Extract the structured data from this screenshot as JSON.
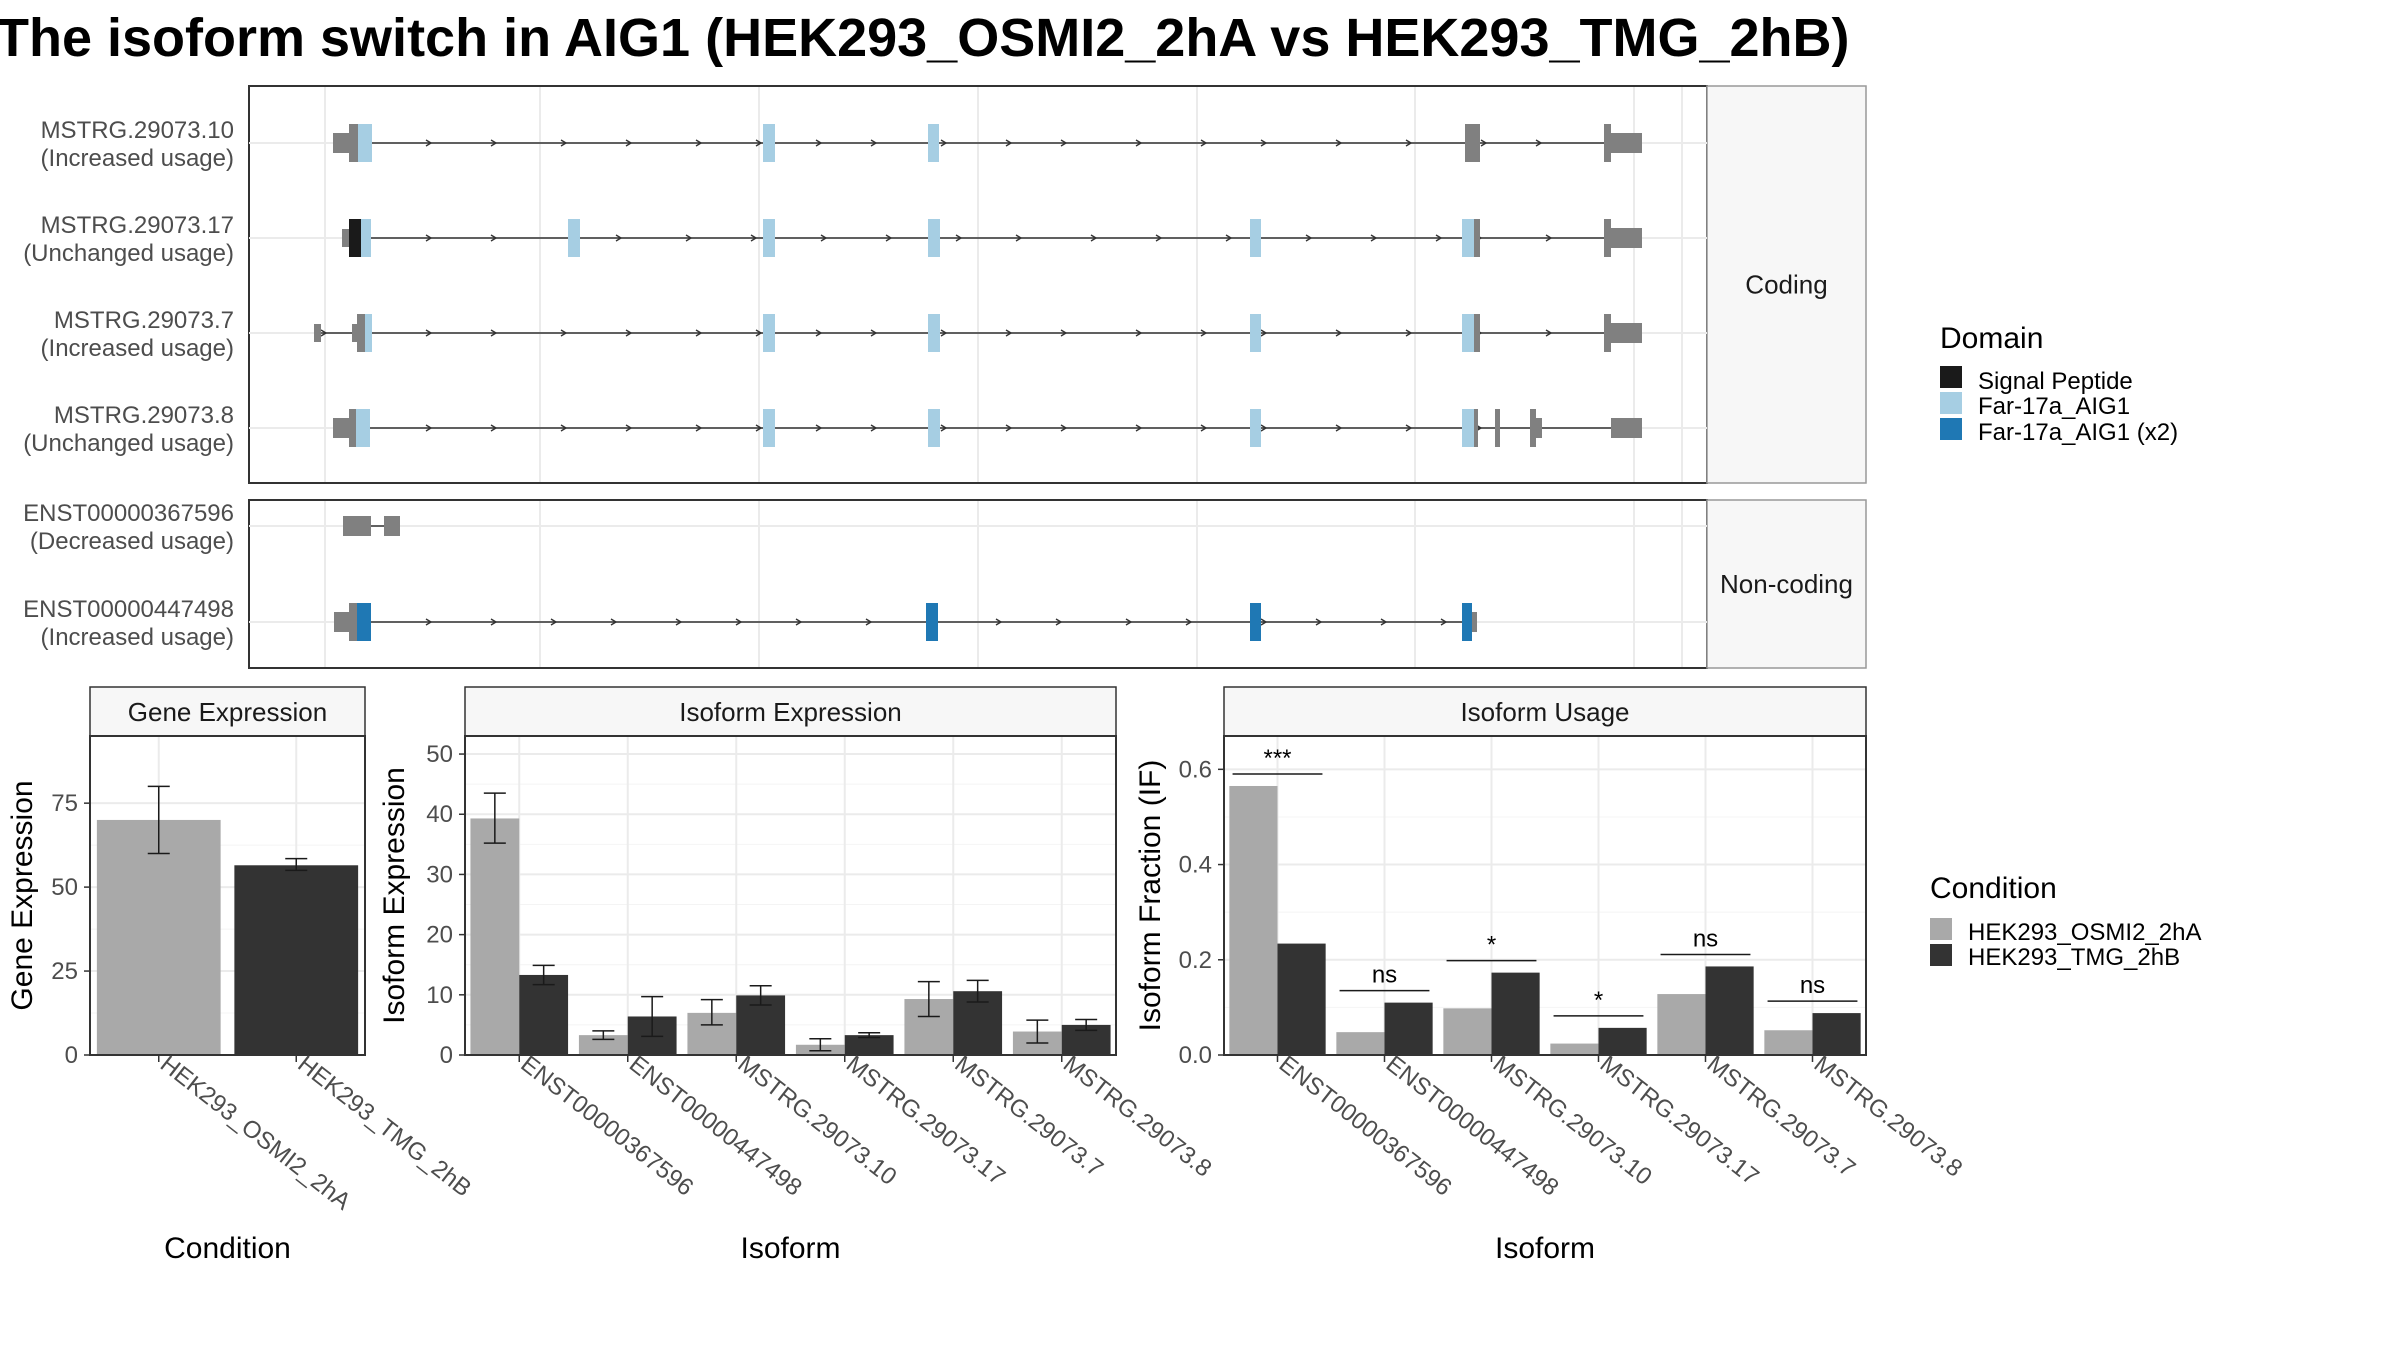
{
  "title": "The isoform switch in AIG1 (HEK293_OSMI2_2hA vs HEK293_TMG_2hB)",
  "colors": {
    "exon": "#808080",
    "signal_peptide": "#1a1a1a",
    "far17a": "#a6cee3",
    "far17a_x2": "#1f78b4",
    "cond_a": "#a9a9a9",
    "cond_b": "#333333"
  },
  "structure": {
    "coding_label": "Coding",
    "noncoding_label": "Non-coding",
    "coding": [
      {
        "id": "MSTRG.29073.10",
        "usage": "(Increased usage)"
      },
      {
        "id": "MSTRG.29073.17",
        "usage": "(Unchanged usage)"
      },
      {
        "id": "MSTRG.29073.7",
        "usage": "(Increased usage)"
      },
      {
        "id": "MSTRG.29073.8",
        "usage": "(Unchanged usage)"
      }
    ],
    "noncoding": [
      {
        "id": "ENST00000367596",
        "usage": "(Decreased usage)"
      },
      {
        "id": "ENST00000447498",
        "usage": "(Increased usage)"
      }
    ]
  },
  "legend_domain": {
    "title": "Domain",
    "items": [
      "Signal Peptide",
      "Far-17a_AIG1",
      "Far-17a_AIG1 (x2)"
    ]
  },
  "legend_condition": {
    "title": "Condition",
    "items": [
      "HEK293_OSMI2_2hA",
      "HEK293_TMG_2hB"
    ]
  },
  "chart_data": [
    {
      "type": "bar",
      "title": "Gene Expression",
      "xlabel": "Condition",
      "ylabel": "Gene Expression",
      "categories": [
        "HEK293_OSMI2_2hA",
        "HEK293_TMG_2hB"
      ],
      "values": [
        70,
        56.5
      ],
      "errors": [
        [
          60,
          80
        ],
        [
          55,
          58.5
        ]
      ],
      "ylim": [
        0,
        95
      ],
      "yticks": [
        0,
        25,
        50,
        75
      ]
    },
    {
      "type": "bar",
      "title": "Isoform Expression",
      "xlabel": "Isoform",
      "ylabel": "Isoform Expression",
      "categories": [
        "ENST00000367596",
        "ENST00000447498",
        "MSTRG.29073.10",
        "MSTRG.29073.17",
        "MSTRG.29073.7",
        "MSTRG.29073.8"
      ],
      "series": [
        {
          "name": "HEK293_OSMI2_2hA",
          "values": [
            39.3,
            3.3,
            7.0,
            1.7,
            9.3,
            3.9
          ],
          "errors": [
            [
              35.2,
              43.5
            ],
            [
              2.6,
              4.0
            ],
            [
              5.0,
              9.2
            ],
            [
              0.7,
              2.7
            ],
            [
              6.4,
              12.2
            ],
            [
              2.0,
              5.8
            ]
          ]
        },
        {
          "name": "HEK293_TMG_2hB",
          "values": [
            13.3,
            6.4,
            9.9,
            3.3,
            10.6,
            5.0
          ],
          "errors": [
            [
              11.7,
              14.9
            ],
            [
              3.1,
              9.7
            ],
            [
              8.3,
              11.5
            ],
            [
              2.9,
              3.7
            ],
            [
              8.8,
              12.4
            ],
            [
              4.1,
              5.9
            ]
          ]
        }
      ],
      "ylim": [
        0,
        53
      ],
      "yticks": [
        0,
        10,
        20,
        30,
        40,
        50
      ]
    },
    {
      "type": "bar",
      "title": "Isoform Usage",
      "xlabel": "Isoform",
      "ylabel": "Isoform Fraction (IF)",
      "categories": [
        "ENST00000367596",
        "ENST00000447498",
        "MSTRG.29073.10",
        "MSTRG.29073.17",
        "MSTRG.29073.7",
        "MSTRG.29073.8"
      ],
      "series": [
        {
          "name": "HEK293_OSMI2_2hA",
          "values": [
            0.565,
            0.048,
            0.098,
            0.024,
            0.128,
            0.052
          ]
        },
        {
          "name": "HEK293_TMG_2hB",
          "values": [
            0.234,
            0.11,
            0.173,
            0.057,
            0.186,
            0.088
          ]
        }
      ],
      "significance": [
        "***",
        "ns",
        "*",
        "*",
        "ns",
        "ns"
      ],
      "ylim": [
        0,
        0.67
      ],
      "yticks": [
        "0.0",
        "0.2",
        "0.4",
        "0.6"
      ]
    }
  ]
}
